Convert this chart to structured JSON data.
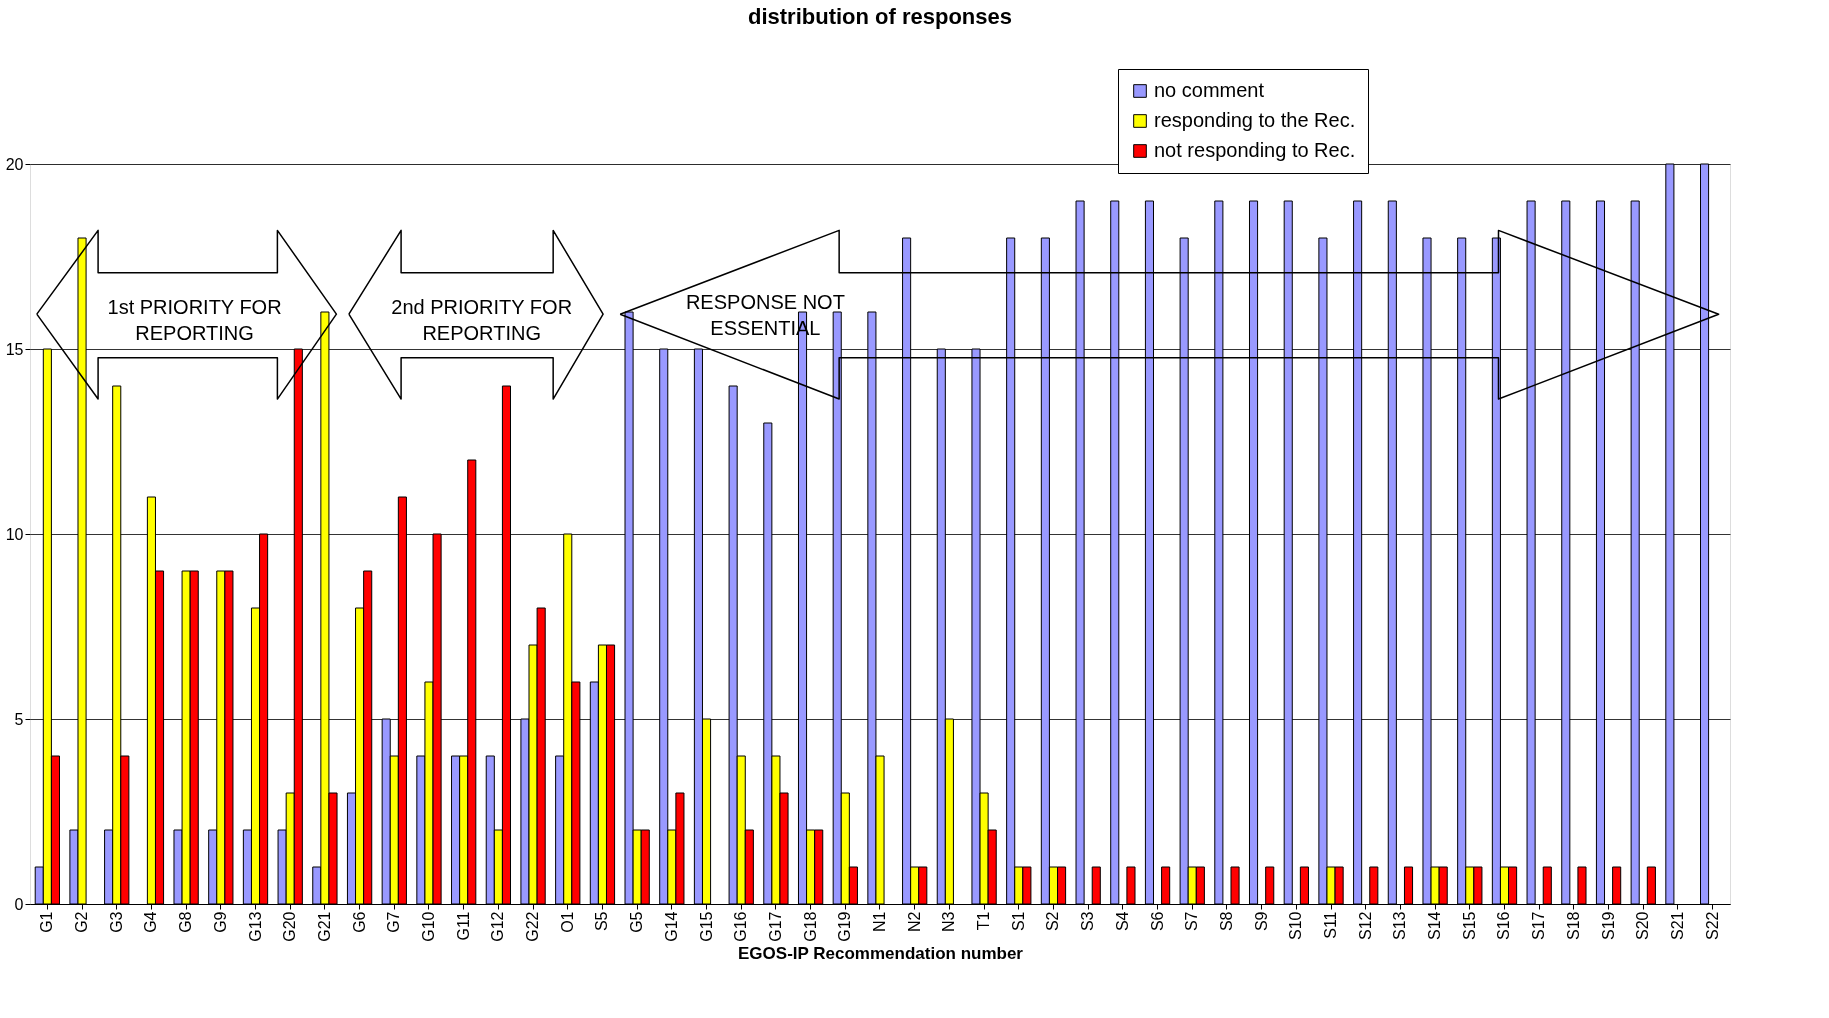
{
  "chart_data": {
    "type": "bar",
    "title": "distribution of responses",
    "xlabel": "EGOS-IP Recommendation number",
    "categories": [
      "G1",
      "G2",
      "G3",
      "G4",
      "G8",
      "G9",
      "G13",
      "G20",
      "G21",
      "G6",
      "G7",
      "G10",
      "G11",
      "G12",
      "G22",
      "O1",
      "S5",
      "G5",
      "G14",
      "G15",
      "G16",
      "G17",
      "G18",
      "G19",
      "N1",
      "N2",
      "N3",
      "T1",
      "S1",
      "S2",
      "S3",
      "S4",
      "S6",
      "S7",
      "S8",
      "S9",
      "S10",
      "S11",
      "S12",
      "S13",
      "S14",
      "S15",
      "S16",
      "S17",
      "S18",
      "S19",
      "S20",
      "S21",
      "S22"
    ],
    "series": [
      {
        "name": "no comment",
        "color": "#9999ff",
        "values": [
          1,
          2,
          2,
          null,
          2,
          2,
          2,
          2,
          1,
          3,
          5,
          4,
          4,
          4,
          5,
          4,
          6,
          16,
          15,
          15,
          14,
          13,
          16,
          16,
          16,
          18,
          15,
          15,
          18,
          18,
          19,
          19,
          19,
          18,
          19,
          19,
          19,
          18,
          19,
          19,
          18,
          18,
          18,
          19,
          19,
          19,
          19,
          20,
          20
        ]
      },
      {
        "name": "responding to the Rec.",
        "color": "#ffff00",
        "values": [
          15,
          18,
          14,
          11,
          9,
          9,
          8,
          3,
          16,
          8,
          4,
          6,
          4,
          2,
          7,
          10,
          7,
          2,
          2,
          5,
          4,
          4,
          2,
          3,
          4,
          1,
          5,
          3,
          1,
          1,
          null,
          null,
          null,
          1,
          null,
          null,
          null,
          1,
          null,
          null,
          1,
          1,
          1,
          null,
          null,
          null,
          null,
          null,
          null
        ]
      },
      {
        "name": "not responding to Rec.",
        "color": "#ff0000",
        "values": [
          4,
          null,
          4,
          9,
          9,
          9,
          10,
          15,
          3,
          9,
          11,
          10,
          12,
          14,
          8,
          6,
          7,
          2,
          3,
          null,
          2,
          3,
          2,
          1,
          null,
          1,
          null,
          2,
          1,
          1,
          1,
          1,
          1,
          1,
          1,
          1,
          1,
          1,
          1,
          1,
          1,
          1,
          1,
          1,
          1,
          1,
          1,
          null,
          null
        ]
      }
    ],
    "ylim": [
      0,
      20
    ],
    "yticks": [
      0,
      5,
      10,
      15,
      20
    ],
    "grid": "y",
    "legend": "top right",
    "annotations": [
      "1st PRIORITY FOR\nREPORTING",
      "2nd PRIORITY FOR\nREPORTING",
      "RESPONSE NOT\nESSENTIAL"
    ]
  }
}
